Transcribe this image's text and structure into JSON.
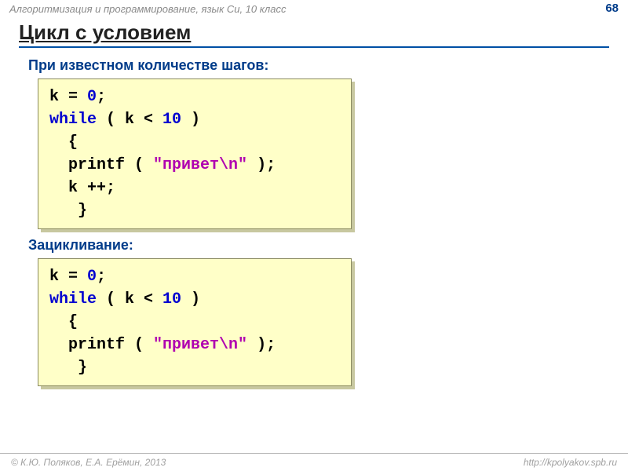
{
  "header": {
    "course": "Алгоритмизация и программирование, язык Си, 10 класс",
    "page": "68"
  },
  "title": "Цикл с условием",
  "sections": [
    {
      "heading": "При известном количестве шагов:",
      "code": [
        [
          {
            "t": "k = "
          },
          {
            "t": "0",
            "c": "num"
          },
          {
            "t": ";"
          }
        ],
        [
          {
            "t": "while",
            "c": "kw"
          },
          {
            "t": " ( k < "
          },
          {
            "t": "10",
            "c": "num"
          },
          {
            "t": " )"
          }
        ],
        [
          {
            "t": "  {"
          }
        ],
        [
          {
            "t": "  printf ( "
          },
          {
            "t": "\"привет\\n\"",
            "c": "str"
          },
          {
            "t": " );"
          }
        ],
        [
          {
            "t": "  k ++;"
          }
        ],
        [
          {
            "t": "   }"
          }
        ]
      ]
    },
    {
      "heading": "Зацикливание:",
      "code": [
        [
          {
            "t": "k = "
          },
          {
            "t": "0",
            "c": "num"
          },
          {
            "t": ";"
          }
        ],
        [
          {
            "t": "while",
            "c": "kw"
          },
          {
            "t": " ( k < "
          },
          {
            "t": "10",
            "c": "num"
          },
          {
            "t": " )"
          }
        ],
        [
          {
            "t": "  {"
          }
        ],
        [
          {
            "t": "  printf ( "
          },
          {
            "t": "\"привет\\n\"",
            "c": "str"
          },
          {
            "t": " );"
          }
        ],
        [
          {
            "t": "   }"
          }
        ]
      ]
    }
  ],
  "footer": {
    "left": "© К.Ю. Поляков, Е.А. Ерёмин, 2013",
    "right": "http://kpolyakov.spb.ru"
  },
  "style": {
    "codebox_bg": "#ffffc8",
    "codebox_border": "#8a8a60",
    "codebox_shadow": "#c8c8a0",
    "keyword_color": "#0000d0",
    "number_color": "#0000d0",
    "string_color": "#b000b0",
    "heading_color": "#003c8a",
    "title_rule_color": "#0050a5",
    "code_font_size_pt": 15,
    "heading_font_size_pt": 14,
    "title_font_size_pt": 20
  }
}
